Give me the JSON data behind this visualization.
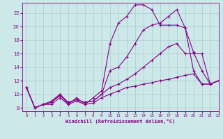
{
  "background_color": "#cce8e8",
  "grid_color": "#aacccc",
  "line_color": "#880088",
  "marker": "+",
  "xlabel": "Windchill (Refroidissement éolien,°C)",
  "xlim": [
    -0.5,
    23
  ],
  "ylim": [
    7.5,
    23.5
  ],
  "yticks": [
    8,
    10,
    12,
    14,
    16,
    18,
    20,
    22
  ],
  "xticks": [
    0,
    1,
    2,
    3,
    4,
    5,
    6,
    7,
    8,
    9,
    10,
    11,
    12,
    13,
    14,
    15,
    16,
    17,
    18,
    19,
    20,
    21,
    22,
    23
  ],
  "series": [
    [
      11.0,
      8.0,
      8.5,
      9.0,
      10.0,
      8.5,
      9.5,
      8.5,
      9.5,
      10.5,
      17.5,
      20.5,
      21.5,
      23.2,
      23.2,
      22.5,
      20.2,
      20.2,
      20.2,
      19.8,
      13.5,
      11.5,
      11.5,
      12.0
    ],
    [
      11.0,
      8.0,
      8.5,
      8.8,
      10.0,
      8.8,
      9.2,
      8.8,
      9.0,
      10.0,
      13.5,
      14.0,
      15.5,
      17.5,
      19.5,
      20.2,
      20.5,
      21.5,
      22.5,
      19.8,
      16.2,
      13.5,
      11.5,
      12.0
    ],
    [
      11.0,
      8.0,
      8.5,
      8.8,
      9.8,
      8.8,
      9.2,
      8.8,
      9.0,
      10.0,
      11.0,
      11.5,
      12.2,
      13.0,
      14.0,
      15.0,
      16.0,
      17.0,
      17.5,
      16.0,
      16.0,
      16.0,
      11.5,
      12.0
    ],
    [
      11.0,
      8.0,
      8.5,
      8.5,
      9.5,
      8.5,
      9.0,
      8.5,
      8.7,
      9.5,
      10.0,
      10.5,
      11.0,
      11.2,
      11.5,
      11.7,
      12.0,
      12.2,
      12.5,
      12.8,
      13.0,
      11.5,
      11.5,
      12.0
    ]
  ]
}
